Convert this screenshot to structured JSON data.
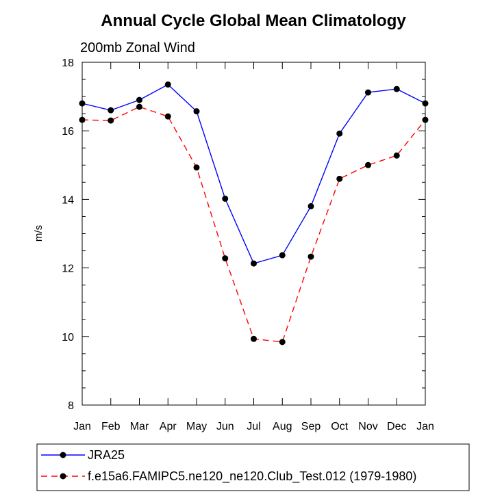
{
  "chart_data": {
    "type": "line",
    "title": "Annual Cycle Global Mean Climatology",
    "subtitle": "200mb Zonal Wind",
    "xlabel": "",
    "ylabel": "m/s",
    "categories": [
      "Jan",
      "Feb",
      "Mar",
      "Apr",
      "May",
      "Jun",
      "Jul",
      "Aug",
      "Sep",
      "Oct",
      "Nov",
      "Dec",
      "Jan"
    ],
    "ylim": [
      8,
      18
    ],
    "yticks": [
      "8",
      "10",
      "12",
      "14",
      "16",
      "18"
    ],
    "series": [
      {
        "name": "JRA25",
        "color": "#0000ff",
        "dash": "solid",
        "marker": "filled-circle",
        "values": [
          16.8,
          16.6,
          16.9,
          17.35,
          16.57,
          14.02,
          12.13,
          12.37,
          13.8,
          15.92,
          17.12,
          17.22,
          16.8
        ]
      },
      {
        "name": "f.e15a6.FAMIPC5.ne120_ne120.Club_Test.012 (1979-1980)",
        "color": "#ff0000",
        "dash": "dashed",
        "marker": "filled-circle",
        "values": [
          16.32,
          16.3,
          16.7,
          16.42,
          14.93,
          12.28,
          9.93,
          9.84,
          12.33,
          14.6,
          15.0,
          15.28,
          16.32
        ]
      }
    ],
    "legend_position": "bottom",
    "grid": false
  }
}
